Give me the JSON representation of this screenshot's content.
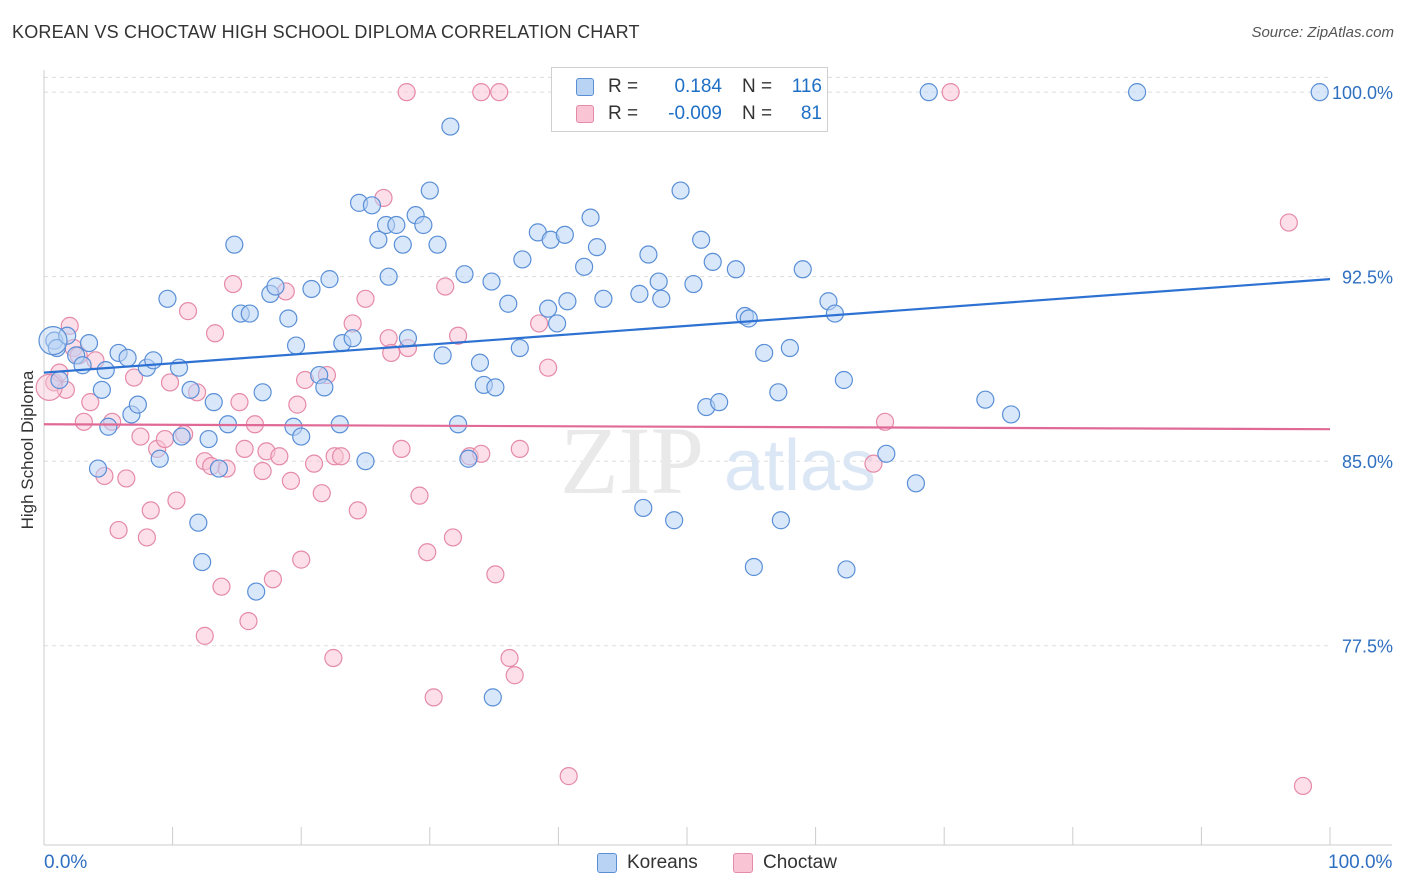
{
  "header": {
    "title": "KOREAN VS CHOCTAW HIGH SCHOOL DIPLOMA CORRELATION CHART",
    "source": "Source: ZipAtlas.com"
  },
  "watermark": {
    "zip": "ZIP",
    "atlas": "atlas"
  },
  "legend": {
    "rows": [
      {
        "r_label": "R =",
        "r_value": "0.184",
        "n_label": "N =",
        "n_value": "116"
      },
      {
        "r_label": "R =",
        "r_value": "-0.009",
        "n_label": "N =",
        "n_value": "81"
      }
    ]
  },
  "bottom_legend": {
    "koreans": "Koreans",
    "choctaw": "Choctaw"
  },
  "axes": {
    "ylabel": "High School Diploma",
    "x_min_label": "0.0%",
    "x_max_label": "100.0%",
    "y_ticks": [
      "100.0%",
      "92.5%",
      "85.0%",
      "77.5%"
    ]
  },
  "colors": {
    "koreans_fill": "#b9d3f5",
    "koreans_stroke": "#5a8fd6",
    "koreans_line": "#2d72d2",
    "choctaw_fill": "#f9c5d5",
    "choctaw_stroke": "#e58aa9",
    "choctaw_line": "#e06a95",
    "tick_label": "#2f6fc0",
    "grid": "#dddddd"
  },
  "chart_data": {
    "type": "scatter",
    "title": "KOREAN VS CHOCTAW HIGH SCHOOL DIPLOMA CORRELATION CHART",
    "xlabel": "",
    "ylabel": "High School Diploma",
    "xlim": [
      0,
      100
    ],
    "ylim": [
      69.4,
      100.9
    ],
    "y_ticks": [
      100.0,
      92.5,
      85.0,
      77.5
    ],
    "grid": true,
    "series": [
      {
        "name": "Koreans",
        "trend": {
          "x": [
            0,
            100
          ],
          "y": [
            88.6,
            92.4
          ]
        },
        "points": [
          [
            0.8,
            89.9
          ],
          [
            1.0,
            89.6
          ],
          [
            1.2,
            88.3
          ],
          [
            1.8,
            90.1
          ],
          [
            2.5,
            89.3
          ],
          [
            3.0,
            88.9
          ],
          [
            3.5,
            89.8
          ],
          [
            4.2,
            84.7
          ],
          [
            4.5,
            87.9
          ],
          [
            4.8,
            88.7
          ],
          [
            5.0,
            86.4
          ],
          [
            5.8,
            89.4
          ],
          [
            6.5,
            89.2
          ],
          [
            6.8,
            86.9
          ],
          [
            7.3,
            87.3
          ],
          [
            8.0,
            88.8
          ],
          [
            8.5,
            89.1
          ],
          [
            9.0,
            85.1
          ],
          [
            9.6,
            91.6
          ],
          [
            10.5,
            88.8
          ],
          [
            10.7,
            86.0
          ],
          [
            11.4,
            87.9
          ],
          [
            12.0,
            82.5
          ],
          [
            12.3,
            80.9
          ],
          [
            12.8,
            85.9
          ],
          [
            13.2,
            87.4
          ],
          [
            13.6,
            84.7
          ],
          [
            14.3,
            86.5
          ],
          [
            14.8,
            93.8
          ],
          [
            15.3,
            91.0
          ],
          [
            16.0,
            91.0
          ],
          [
            16.5,
            79.7
          ],
          [
            17.0,
            87.8
          ],
          [
            17.6,
            91.8
          ],
          [
            18.0,
            92.1
          ],
          [
            19.0,
            90.8
          ],
          [
            19.4,
            86.4
          ],
          [
            19.6,
            89.7
          ],
          [
            20.0,
            86.0
          ],
          [
            20.8,
            92.0
          ],
          [
            21.4,
            88.5
          ],
          [
            21.8,
            88.0
          ],
          [
            22.2,
            92.4
          ],
          [
            23.0,
            86.5
          ],
          [
            23.2,
            89.8
          ],
          [
            24.0,
            90.0
          ],
          [
            24.5,
            95.5
          ],
          [
            25.0,
            85.0
          ],
          [
            25.5,
            95.4
          ],
          [
            26.0,
            94.0
          ],
          [
            26.6,
            94.6
          ],
          [
            26.8,
            92.5
          ],
          [
            27.4,
            94.6
          ],
          [
            27.9,
            93.8
          ],
          [
            28.3,
            90.0
          ],
          [
            28.9,
            95.0
          ],
          [
            29.5,
            94.6
          ],
          [
            30.0,
            96.0
          ],
          [
            30.6,
            93.8
          ],
          [
            31.0,
            89.3
          ],
          [
            31.6,
            98.6
          ],
          [
            32.2,
            86.5
          ],
          [
            32.7,
            92.6
          ],
          [
            33.0,
            85.1
          ],
          [
            33.9,
            89.0
          ],
          [
            34.2,
            88.1
          ],
          [
            34.8,
            92.3
          ],
          [
            35.1,
            88.0
          ],
          [
            36.1,
            91.4
          ],
          [
            37.0,
            89.6
          ],
          [
            37.2,
            93.2
          ],
          [
            38.4,
            94.3
          ],
          [
            39.2,
            91.2
          ],
          [
            39.4,
            94.0
          ],
          [
            39.9,
            90.6
          ],
          [
            40.5,
            94.2
          ],
          [
            40.7,
            91.5
          ],
          [
            42.0,
            92.9
          ],
          [
            42.5,
            94.9
          ],
          [
            43.0,
            93.7
          ],
          [
            43.5,
            91.6
          ],
          [
            46.3,
            91.8
          ],
          [
            46.6,
            83.1
          ],
          [
            47.0,
            93.4
          ],
          [
            47.8,
            92.3
          ],
          [
            48.0,
            91.6
          ],
          [
            49.0,
            82.6
          ],
          [
            49.5,
            96.0
          ],
          [
            50.5,
            92.2
          ],
          [
            51.1,
            94.0
          ],
          [
            51.5,
            87.2
          ],
          [
            52.0,
            93.1
          ],
          [
            52.5,
            87.4
          ],
          [
            53.8,
            92.8
          ],
          [
            54.5,
            90.9
          ],
          [
            54.8,
            90.8
          ],
          [
            55.2,
            80.7
          ],
          [
            56.0,
            89.4
          ],
          [
            57.1,
            87.8
          ],
          [
            57.3,
            82.6
          ],
          [
            58.0,
            89.6
          ],
          [
            59.0,
            92.8
          ],
          [
            61.0,
            91.5
          ],
          [
            61.5,
            91.0
          ],
          [
            62.2,
            88.3
          ],
          [
            62.4,
            80.6
          ],
          [
            65.5,
            85.3
          ],
          [
            67.8,
            84.1
          ],
          [
            73.2,
            87.5
          ],
          [
            75.2,
            86.9
          ],
          [
            68.8,
            100.0
          ],
          [
            85.0,
            100.0
          ],
          [
            99.2,
            100.0
          ],
          [
            34.9,
            75.4
          ]
        ]
      },
      {
        "name": "Choctaw",
        "trend": {
          "x": [
            0,
            100
          ],
          "y": [
            86.5,
            86.3
          ]
        },
        "points": [
          [
            0.8,
            88.2
          ],
          [
            1.2,
            88.6
          ],
          [
            1.7,
            87.9
          ],
          [
            2.0,
            90.5
          ],
          [
            2.3,
            89.6
          ],
          [
            2.7,
            89.3
          ],
          [
            3.1,
            86.6
          ],
          [
            3.6,
            87.4
          ],
          [
            4.0,
            89.1
          ],
          [
            4.7,
            84.4
          ],
          [
            5.3,
            86.6
          ],
          [
            5.8,
            82.2
          ],
          [
            6.4,
            84.3
          ],
          [
            7.0,
            88.4
          ],
          [
            7.5,
            86.0
          ],
          [
            8.0,
            81.9
          ],
          [
            8.3,
            83.0
          ],
          [
            8.8,
            85.5
          ],
          [
            9.4,
            85.9
          ],
          [
            9.8,
            88.2
          ],
          [
            10.3,
            83.4
          ],
          [
            10.9,
            86.1
          ],
          [
            11.2,
            91.1
          ],
          [
            11.9,
            87.8
          ],
          [
            12.5,
            85.0
          ],
          [
            13.0,
            84.8
          ],
          [
            13.3,
            90.2
          ],
          [
            13.8,
            79.9
          ],
          [
            14.2,
            84.7
          ],
          [
            14.7,
            92.2
          ],
          [
            15.2,
            87.4
          ],
          [
            15.6,
            85.5
          ],
          [
            15.9,
            78.5
          ],
          [
            16.4,
            86.5
          ],
          [
            17.0,
            84.6
          ],
          [
            17.3,
            85.4
          ],
          [
            17.8,
            80.2
          ],
          [
            18.3,
            85.2
          ],
          [
            18.8,
            91.9
          ],
          [
            19.2,
            84.2
          ],
          [
            19.7,
            87.3
          ],
          [
            20.0,
            81.0
          ],
          [
            20.3,
            88.3
          ],
          [
            21.0,
            84.9
          ],
          [
            21.6,
            83.7
          ],
          [
            22.0,
            88.5
          ],
          [
            22.6,
            85.2
          ],
          [
            23.1,
            85.2
          ],
          [
            24.0,
            90.6
          ],
          [
            24.4,
            83.0
          ],
          [
            25.0,
            91.6
          ],
          [
            26.4,
            95.7
          ],
          [
            26.8,
            90.0
          ],
          [
            27.0,
            89.4
          ],
          [
            27.8,
            85.5
          ],
          [
            28.3,
            89.6
          ],
          [
            29.2,
            83.6
          ],
          [
            29.8,
            81.3
          ],
          [
            30.3,
            75.4
          ],
          [
            31.2,
            92.1
          ],
          [
            31.8,
            81.9
          ],
          [
            32.2,
            90.1
          ],
          [
            33.1,
            85.2
          ],
          [
            34.0,
            85.3
          ],
          [
            35.1,
            80.4
          ],
          [
            36.6,
            76.3
          ],
          [
            37.0,
            85.5
          ],
          [
            38.5,
            90.6
          ],
          [
            39.2,
            88.8
          ],
          [
            40.8,
            72.2
          ],
          [
            22.5,
            77.0
          ],
          [
            36.2,
            77.0
          ],
          [
            28.2,
            100.0
          ],
          [
            34.0,
            100.0
          ],
          [
            35.4,
            100.0
          ],
          [
            70.5,
            100.0
          ],
          [
            64.5,
            84.9
          ],
          [
            65.4,
            86.6
          ],
          [
            96.8,
            94.7
          ],
          [
            97.9,
            71.8
          ],
          [
            12.5,
            77.9
          ]
        ]
      }
    ]
  }
}
